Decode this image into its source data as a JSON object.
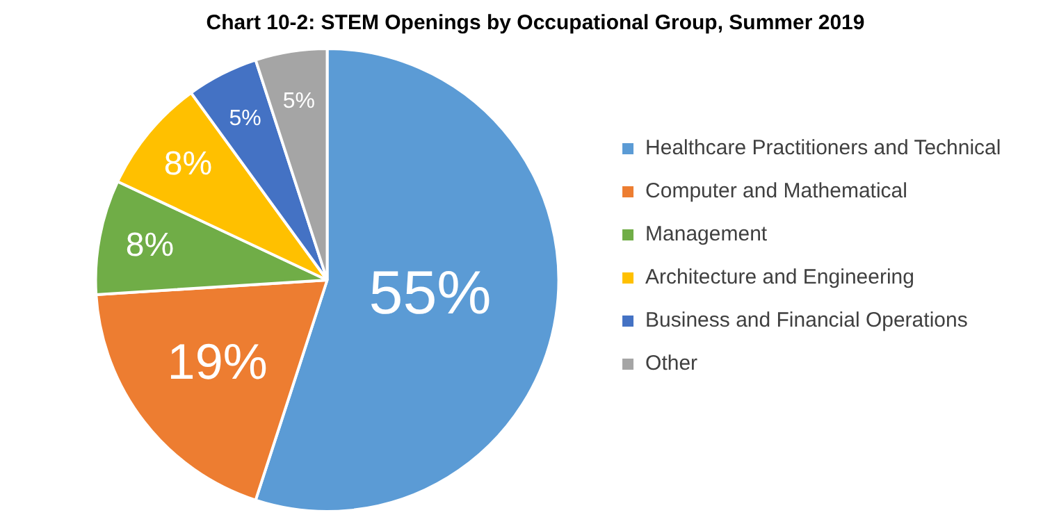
{
  "chart_data": {
    "type": "pie",
    "title": "Chart 10-2: STEM Openings by Occupational Group, Summer 2019",
    "categories": [
      "Healthcare Practitioners and Technical",
      "Computer and Mathematical",
      "Management",
      "Architecture and Engineering",
      "Business and Financial Operations",
      "Other"
    ],
    "values": [
      55,
      19,
      8,
      8,
      5,
      5
    ],
    "colors": [
      "#5b9bd5",
      "#ed7d31",
      "#70ad47",
      "#ffc000",
      "#4472c4",
      "#a5a5a5"
    ],
    "value_labels": [
      "55%",
      "19%",
      "8%",
      "8%",
      "5%",
      "5%"
    ],
    "legend": "right"
  }
}
